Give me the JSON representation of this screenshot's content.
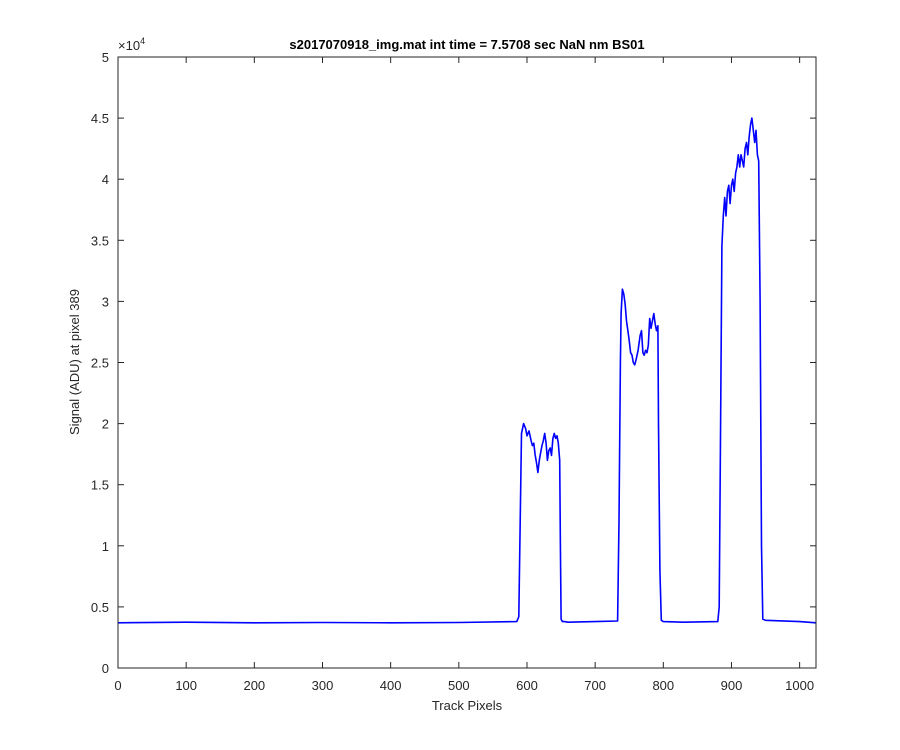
{
  "chart_data": {
    "type": "line",
    "title": "s2017070918_img.mat int time = 7.5708 sec  NaN nm BS01",
    "xlabel": "Track Pixels",
    "ylabel": "Signal (ADU) at pixel 389",
    "xlim": [
      0,
      1024
    ],
    "ylim": [
      0,
      50000
    ],
    "x_ticks": [
      0,
      100,
      200,
      300,
      400,
      500,
      600,
      700,
      800,
      900,
      1000
    ],
    "x_tick_labels": [
      "0",
      "100",
      "200",
      "300",
      "400",
      "500",
      "600",
      "700",
      "800",
      "900",
      "1000"
    ],
    "y_ticks": [
      0,
      5000,
      10000,
      15000,
      20000,
      25000,
      30000,
      35000,
      40000,
      45000,
      50000
    ],
    "y_tick_labels": [
      "0",
      "0.5",
      "1",
      "1.5",
      "2",
      "2.5",
      "3",
      "3.5",
      "4",
      "4.5",
      "5"
    ],
    "y_exponent_base": "×10",
    "y_exponent_power": "4",
    "grid": false,
    "line_color": "#0000ff",
    "series": [
      {
        "x": [
          0,
          100,
          200,
          300,
          400,
          500,
          585,
          588,
          590,
          592,
          595,
          598,
          600,
          603,
          606,
          608,
          610,
          612,
          614,
          616,
          618,
          620,
          622,
          624,
          626,
          628,
          630,
          632,
          634,
          636,
          638,
          640,
          642,
          644,
          646,
          648,
          649,
          650,
          652,
          655,
          660,
          700,
          733,
          735,
          737,
          738,
          740,
          742,
          744,
          746,
          748,
          750,
          752,
          754,
          756,
          758,
          760,
          763,
          766,
          768,
          770,
          772,
          774,
          776,
          778,
          780,
          782,
          784,
          786,
          788,
          790,
          792,
          793,
          795,
          797,
          800,
          830,
          880,
          882,
          884,
          886,
          888,
          890,
          892,
          894,
          896,
          898,
          900,
          902,
          904,
          906,
          908,
          910,
          912,
          914,
          916,
          918,
          920,
          922,
          924,
          926,
          928,
          930,
          932,
          934,
          936,
          938,
          940,
          942,
          944,
          946,
          950,
          1000,
          1024
        ],
        "y": [
          3700,
          3750,
          3700,
          3720,
          3700,
          3720,
          3800,
          4200,
          12000,
          19200,
          20000,
          19600,
          19000,
          19400,
          18600,
          18200,
          18400,
          17400,
          16800,
          16000,
          17000,
          17600,
          18200,
          18600,
          19200,
          18400,
          17000,
          17800,
          18000,
          17400,
          18800,
          19200,
          18800,
          19000,
          18400,
          17000,
          10000,
          4000,
          3800,
          3800,
          3750,
          3800,
          3850,
          12000,
          25000,
          29000,
          31000,
          30600,
          29800,
          28400,
          27600,
          26800,
          25800,
          25600,
          25000,
          24800,
          25200,
          26000,
          27200,
          27600,
          25800,
          25600,
          26000,
          25800,
          26400,
          28600,
          27800,
          28400,
          29000,
          28200,
          27600,
          28000,
          20000,
          8000,
          3900,
          3800,
          3750,
          3800,
          5000,
          20000,
          34500,
          37000,
          38500,
          37000,
          39000,
          39500,
          38000,
          39500,
          40000,
          39000,
          40500,
          41000,
          42000,
          41000,
          42000,
          41500,
          41000,
          42500,
          43000,
          42000,
          43500,
          44500,
          45000,
          44000,
          43000,
          44000,
          42000,
          41500,
          30000,
          10000,
          4000,
          3900,
          3800,
          3700
        ]
      }
    ]
  }
}
